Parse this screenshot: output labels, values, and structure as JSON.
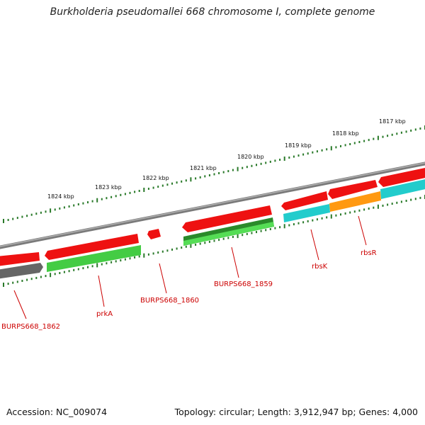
{
  "title": "Burkholderia pseudomallei 668 chromosome I, complete genome",
  "footer": {
    "accession": "Accession: NC_009074",
    "summary": "Topology: circular; Length: 3,912,947 bp; Genes: 4,000"
  },
  "scale_ticks": [
    "1824 kbp",
    "1823 kbp",
    "1822 kbp",
    "1821 kbp",
    "1820 kbp",
    "1819 kbp",
    "1818 kbp",
    "1817 kbp"
  ],
  "gene_labels": [
    "BURPS668_1862",
    "prkA",
    "BURPS668_1860",
    "BURPS668_1859",
    "rbsK",
    "rbsR"
  ],
  "colors": {
    "backbone": "#808080",
    "forward_cds": "#ee1111",
    "reverse_gray": "#666666",
    "reverse_green": "#44cc44",
    "reverse_darkgreen": "#2a8a2a",
    "cyan": "#22cccc",
    "orange": "#ff9911",
    "ticks": "#2a7a2a",
    "label_red": "#cc0000"
  }
}
